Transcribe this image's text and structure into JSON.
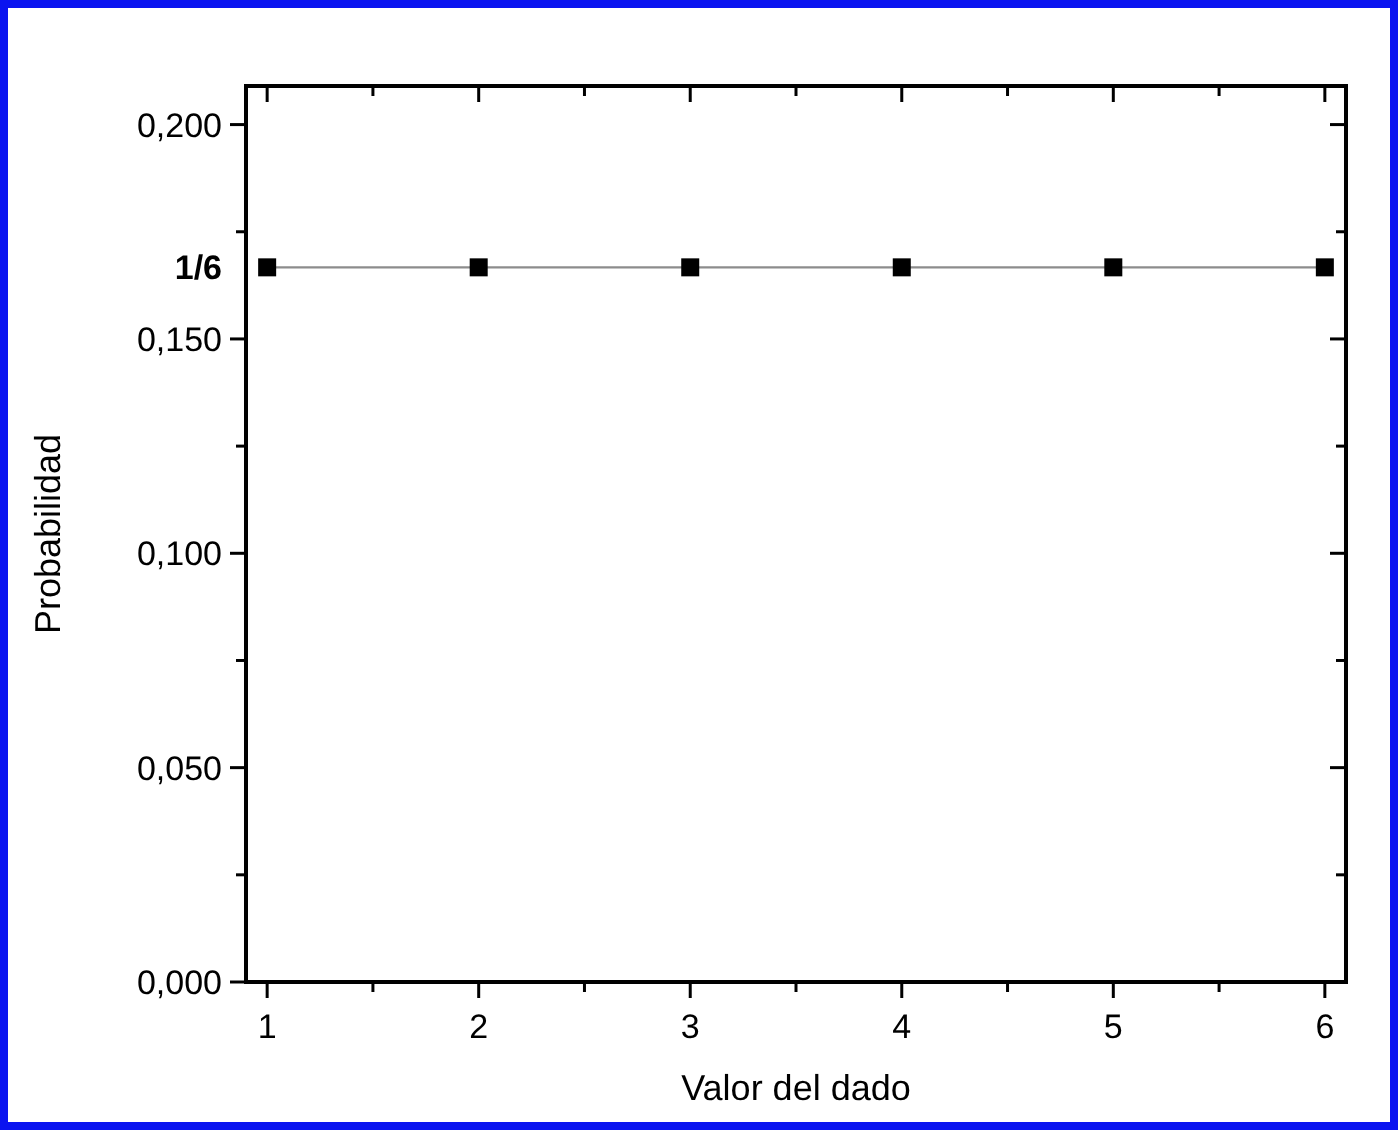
{
  "chart_data": {
    "type": "line",
    "xlabel": "Valor del dado",
    "ylabel": "Probabilidad",
    "x": [
      1,
      2,
      3,
      4,
      5,
      6
    ],
    "series": [
      {
        "color": "#000000",
        "values": [
          0.1667,
          0.1667,
          0.1667,
          0.1667,
          0.1667,
          0.1667
        ]
      }
    ],
    "xlim": [
      0.9,
      6.1
    ],
    "ylim": [
      0,
      0.209
    ],
    "xticks": [
      1,
      {
        "value": 1.5,
        "label": null
      },
      2,
      {
        "value": 2.5,
        "label": null
      },
      3,
      {
        "value": 3.5,
        "label": null
      },
      4,
      {
        "value": 4.5,
        "label": null
      },
      5,
      {
        "value": 5.5,
        "label": null
      },
      6
    ],
    "yticks": [
      {
        "value": 0,
        "label": "0,000"
      },
      {
        "value": 0.025,
        "label": null
      },
      {
        "value": 0.05,
        "label": "0,050"
      },
      {
        "value": 0.075,
        "label": null
      },
      {
        "value": 0.1,
        "label": "0,100"
      },
      {
        "value": 0.125,
        "label": null
      },
      {
        "value": 0.15,
        "label": "0,150"
      },
      {
        "value": 0.1667,
        "label": "1/6"
      },
      {
        "value": 0.175,
        "label": null
      },
      {
        "value": 0.2,
        "label": "0,200"
      }
    ],
    "marker": "square",
    "line_style": "solid",
    "grid": false
  }
}
